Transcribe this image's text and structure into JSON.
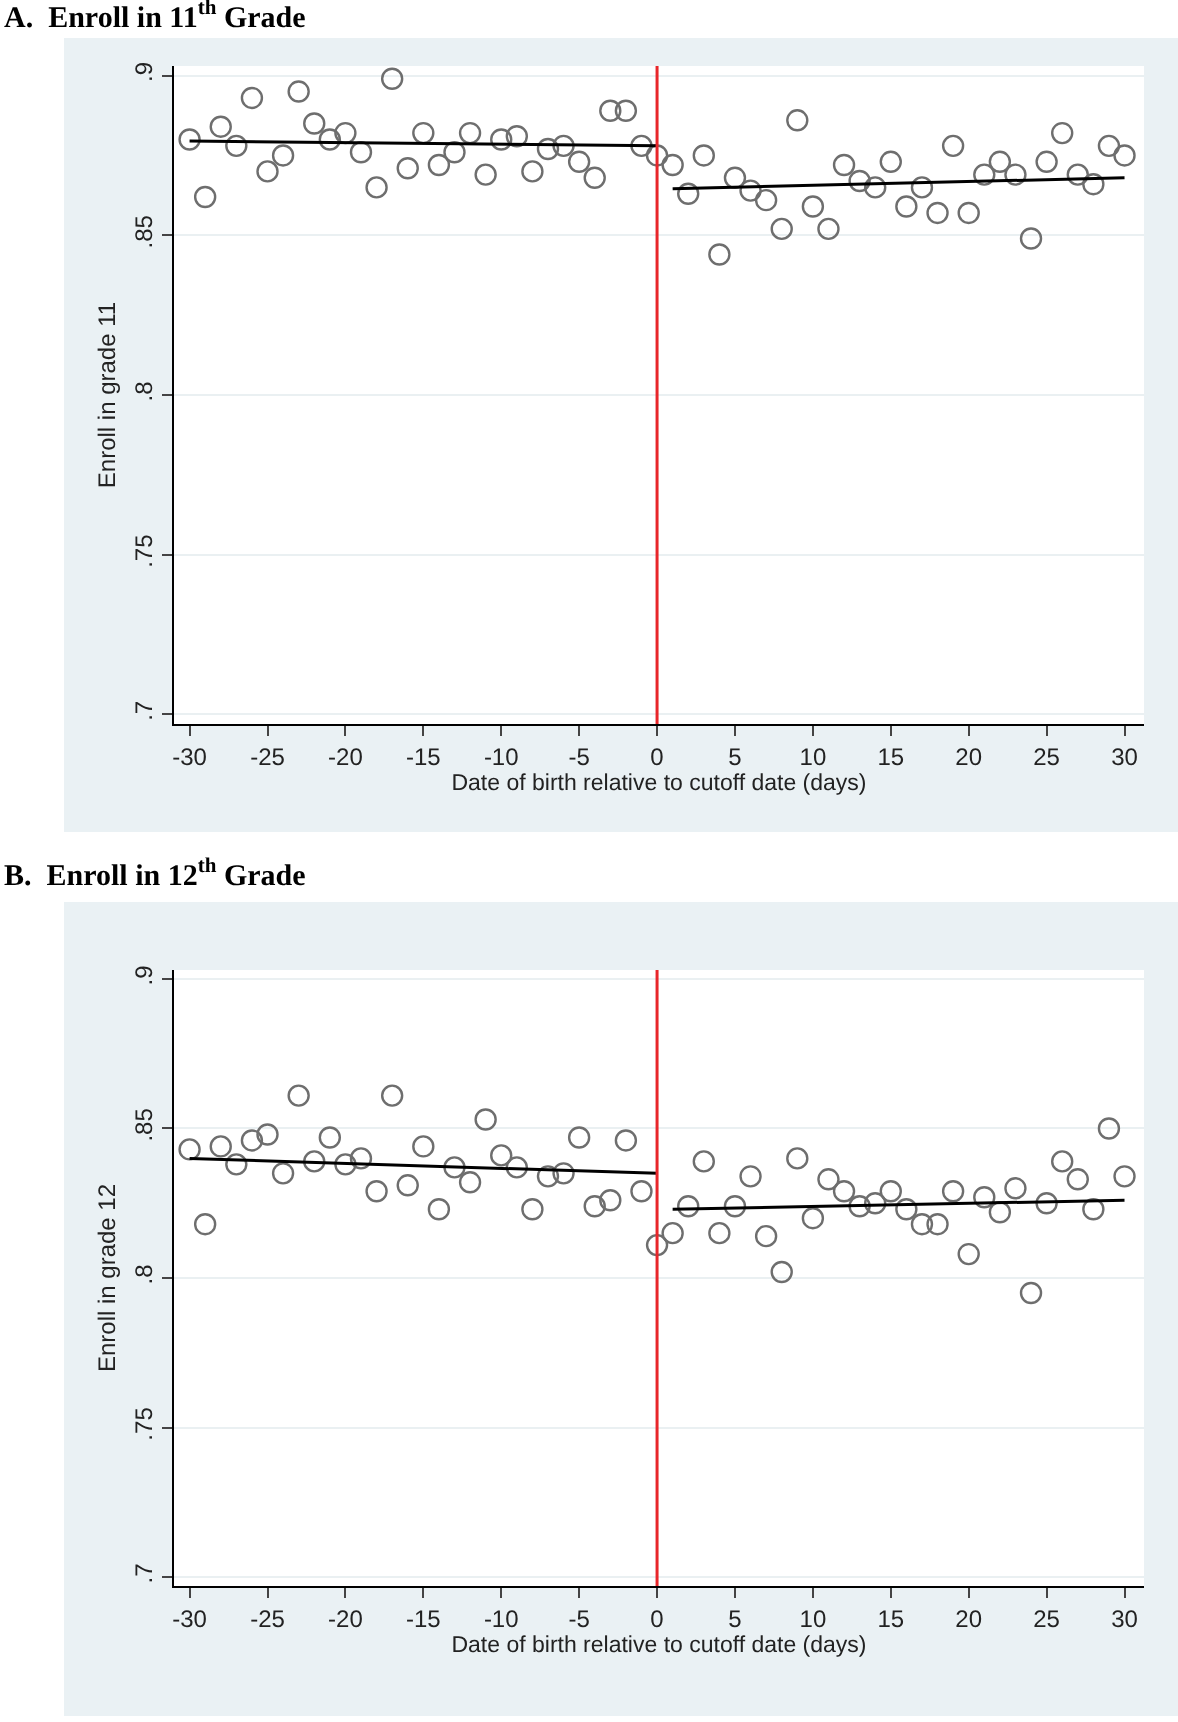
{
  "chart_data": [
    {
      "type": "scatter",
      "title": "A.  Enroll in 11$^{th}$ Grade",
      "xlabel": "Date of birth relative to cutoff date (days)",
      "ylabel": "Enroll in grade 11",
      "grid": "y",
      "xlim": [
        -31,
        31.25
      ],
      "xticks": [
        -30,
        -25,
        -20,
        -15,
        -10,
        -5,
        0,
        5,
        10,
        15,
        20,
        25,
        30
      ],
      "ylim": [
        0.697,
        0.903
      ],
      "yticks": [
        {
          "value": 0.7,
          "label": ".7"
        },
        {
          "value": 0.75,
          "label": ".75"
        },
        {
          "value": 0.8,
          "label": ".8"
        },
        {
          "value": 0.85,
          "label": ".85"
        },
        {
          "value": 0.9,
          "label": ".9"
        }
      ],
      "x": [
        -30,
        -29,
        -28,
        -27,
        -26,
        -25,
        -24,
        -23,
        -22,
        -21,
        -20,
        -19,
        -18,
        -17,
        -16,
        -15,
        -14,
        -13,
        -12,
        -11,
        -10,
        -9,
        -8,
        -7,
        -6,
        -5,
        -4,
        -3,
        -2,
        -1,
        0,
        1,
        2,
        3,
        4,
        5,
        6,
        7,
        8,
        9,
        10,
        11,
        12,
        13,
        14,
        15,
        16,
        17,
        18,
        19,
        20,
        21,
        22,
        23,
        24,
        25,
        26,
        27,
        28,
        29,
        30
      ],
      "series": [
        {
          "marker": "circle",
          "color": "#6e6e6e",
          "values": [
            0.88,
            0.862,
            0.884,
            0.878,
            0.893,
            0.87,
            0.875,
            0.895,
            0.885,
            0.88,
            0.882,
            0.876,
            0.865,
            0.899,
            0.871,
            0.882,
            0.872,
            0.876,
            0.882,
            0.869,
            0.88,
            0.881,
            0.87,
            0.877,
            0.878,
            0.873,
            0.868,
            0.889,
            0.889,
            0.878,
            0.875,
            0.872,
            0.863,
            0.875,
            0.844,
            0.868,
            0.864,
            0.861,
            0.852,
            0.886,
            0.859,
            0.852,
            0.872,
            0.867,
            0.865,
            0.873,
            0.859,
            0.865,
            0.857,
            0.878,
            0.857,
            0.869,
            0.873,
            0.869,
            0.849,
            0.873,
            0.882,
            0.869,
            0.866,
            0.878,
            0.875
          ]
        },
        {
          "type": "line",
          "color": "#000000",
          "x": [
            -30,
            0
          ],
          "values": [
            0.8795,
            0.878
          ]
        },
        {
          "type": "line",
          "color": "#000000",
          "x": [
            1,
            30
          ],
          "values": [
            0.8646,
            0.868
          ]
        }
      ],
      "ref_lines": [
        {
          "axis": "x",
          "value": 0,
          "color": "#e8262a"
        }
      ]
    },
    {
      "type": "scatter",
      "title": "B.  Enroll in 12$^{th}$ Grade",
      "xlabel": "Date of birth relative to cutoff date (days)",
      "ylabel": "Enroll in grade 12",
      "grid": "y",
      "xlim": [
        -31,
        31.25
      ],
      "xticks": [
        -30,
        -25,
        -20,
        -15,
        -10,
        -5,
        0,
        5,
        10,
        15,
        20,
        25,
        30
      ],
      "ylim": [
        0.697,
        0.903
      ],
      "yticks": [
        {
          "value": 0.7,
          "label": ".7"
        },
        {
          "value": 0.75,
          "label": ".75"
        },
        {
          "value": 0.8,
          "label": ".8"
        },
        {
          "value": 0.85,
          "label": ".85"
        },
        {
          "value": 0.9,
          "label": ".9"
        }
      ],
      "x": [
        -30,
        -29,
        -28,
        -27,
        -26,
        -25,
        -24,
        -23,
        -22,
        -21,
        -20,
        -19,
        -18,
        -17,
        -16,
        -15,
        -14,
        -13,
        -12,
        -11,
        -10,
        -9,
        -8,
        -7,
        -6,
        -5,
        -4,
        -3,
        -2,
        -1,
        0,
        1,
        2,
        3,
        4,
        5,
        6,
        7,
        8,
        9,
        10,
        11,
        12,
        13,
        14,
        15,
        16,
        17,
        18,
        19,
        20,
        21,
        22,
        23,
        24,
        25,
        26,
        27,
        28,
        29,
        30
      ],
      "series": [
        {
          "marker": "circle",
          "color": "#6e6e6e",
          "values": [
            0.843,
            0.818,
            0.844,
            0.838,
            0.846,
            0.848,
            0.835,
            0.861,
            0.839,
            0.847,
            0.838,
            0.84,
            0.829,
            0.861,
            0.831,
            0.844,
            0.823,
            0.837,
            0.832,
            0.853,
            0.841,
            0.837,
            0.823,
            0.834,
            0.835,
            0.847,
            0.824,
            0.826,
            0.846,
            0.829,
            0.811,
            0.815,
            0.824,
            0.839,
            0.815,
            0.824,
            0.834,
            0.814,
            0.802,
            0.84,
            0.82,
            0.833,
            0.829,
            0.824,
            0.825,
            0.829,
            0.823,
            0.818,
            0.818,
            0.829,
            0.808,
            0.827,
            0.822,
            0.83,
            0.795,
            0.825,
            0.839,
            0.833,
            0.823,
            0.85,
            0.834
          ]
        },
        {
          "type": "line",
          "color": "#000000",
          "x": [
            -30,
            0
          ],
          "values": [
            0.84,
            0.835
          ]
        },
        {
          "type": "line",
          "color": "#000000",
          "x": [
            1,
            30
          ],
          "values": [
            0.823,
            0.826
          ]
        }
      ],
      "ref_lines": [
        {
          "axis": "x",
          "value": 0,
          "color": "#e8262a"
        }
      ]
    }
  ]
}
